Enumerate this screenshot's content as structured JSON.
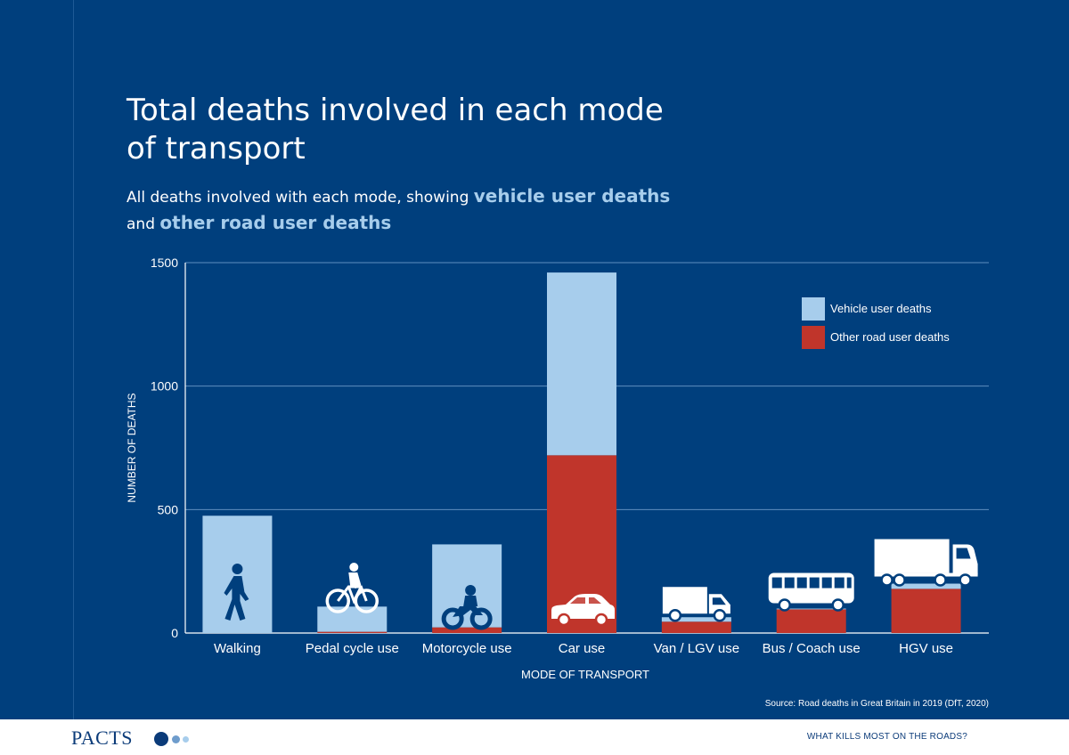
{
  "title": "Total deaths involved in each mode of transport",
  "subtitle": {
    "text_1": "All deaths involved with each mode, showing ",
    "highlight_1": "vehicle user deaths",
    "text_2": " and ",
    "highlight_2": "other road user deaths"
  },
  "footer": {
    "logo": "PACTS",
    "right": "WHAT KILLS MOST ON THE ROADS?"
  },
  "colors": {
    "background": "#003f7d",
    "vehicle_user": "#a7cdec",
    "other_road_user": "#c0352b",
    "icon": "#ffffff"
  },
  "chart_data": {
    "type": "bar",
    "stacked": true,
    "xlabel": "MODE OF TRANSPORT",
    "ylabel": "NUMBER OF DEATHS",
    "ylim": [
      0,
      1500
    ],
    "yticks": [
      0,
      500,
      1000,
      1500
    ],
    "grid": true,
    "legend_position": "top-right",
    "source": "Source: Road deaths in Great Britain in 2019 (DfT, 2020)",
    "categories": [
      "Walking",
      "Pedal cycle use",
      "Motorcycle use",
      "Car use",
      "Van / LGV use",
      "Bus / Coach use",
      "HGV use"
    ],
    "icons": [
      "pedestrian-icon",
      "bicycle-icon",
      "motorcycle-icon",
      "car-icon",
      "van-icon",
      "bus-icon",
      "hgv-truck-icon"
    ],
    "series": [
      {
        "name": "Vehicle user deaths",
        "values": [
          475,
          102,
          336,
          740,
          18,
          3,
          21
        ]
      },
      {
        "name": "Other road user deaths",
        "values": [
          0,
          5,
          23,
          720,
          46,
          96,
          179
        ]
      }
    ]
  }
}
